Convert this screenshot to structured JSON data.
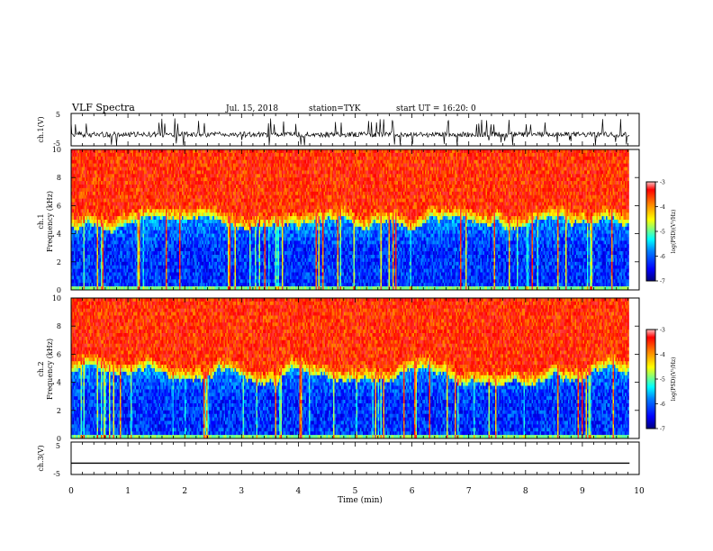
{
  "header": {
    "title": "VLF Spectra",
    "date": "Jul. 15, 2018",
    "station": "station=TYK",
    "start": "start UT =  16:20: 0"
  },
  "chart_data": [
    {
      "type": "line",
      "name": "ch1-waveform",
      "ylabel": "ch.1(V)",
      "ylim": [
        -5,
        5
      ],
      "yticks": [
        "5",
        "-5"
      ],
      "xlim": [
        0,
        10
      ],
      "data_xrange": [
        0,
        9.83
      ],
      "baseline_value": -1.5,
      "noise_amplitude": 0.8,
      "spike_min": -5,
      "spike_max": 3.5
    },
    {
      "type": "heatmap",
      "name": "ch1-spectrogram",
      "ylabel": "ch.1\nFrequency (kHz)",
      "ylim": [
        0,
        10
      ],
      "yticks": [
        "0",
        "2",
        "4",
        "6",
        "8",
        "10"
      ],
      "xlim": [
        0,
        10
      ],
      "data_xrange": [
        0,
        9.83
      ],
      "colorbar": {
        "label": "log(PSD)(V²/Hz)",
        "range": [
          -7,
          -3
        ],
        "ticks": [
          "-3",
          "-4",
          "-5",
          "-6",
          "-7"
        ]
      },
      "cutoff_khz_min": 3.8,
      "cutoff_khz_max": 5.2,
      "description": "high-frequency region 5-10 kHz dominated by red/orange values (~-3.5), low-frequency 0-4 kHz dark blue (~-6.5) with frequent vertical broadband impulses"
    },
    {
      "type": "heatmap",
      "name": "ch2-spectrogram",
      "ylabel": "ch.2\nFrequency (kHz)",
      "ylim": [
        0,
        10
      ],
      "yticks": [
        "0",
        "2",
        "4",
        "6",
        "8",
        "10"
      ],
      "xlim": [
        0,
        10
      ],
      "data_xrange": [
        0,
        9.83
      ],
      "colorbar": {
        "label": "log(PSD)(V²/Hz)",
        "range": [
          -7,
          -3
        ],
        "ticks": [
          "-3",
          "-4",
          "-5",
          "-6",
          "-7"
        ]
      },
      "cutoff_khz_min": 3.8,
      "cutoff_khz_max": 5.2
    },
    {
      "type": "line",
      "name": "ch3-waveform",
      "ylabel": "ch.3(V)",
      "ylim": [
        -5,
        5
      ],
      "yticks": [
        "5",
        "-5"
      ],
      "xlim": [
        0,
        10
      ],
      "data_xrange": [
        0,
        9.83
      ],
      "constant_value": -1.5,
      "xlabel": "Time (min)",
      "xticks": [
        "0",
        "1",
        "2",
        "3",
        "4",
        "5",
        "6",
        "7",
        "8",
        "9",
        "10"
      ]
    }
  ],
  "colors": {
    "scale": [
      "#00007f",
      "#0000ff",
      "#0077ff",
      "#00ffff",
      "#7fff7f",
      "#ffff00",
      "#ff7f00",
      "#ff0000",
      "#ff6060"
    ]
  }
}
